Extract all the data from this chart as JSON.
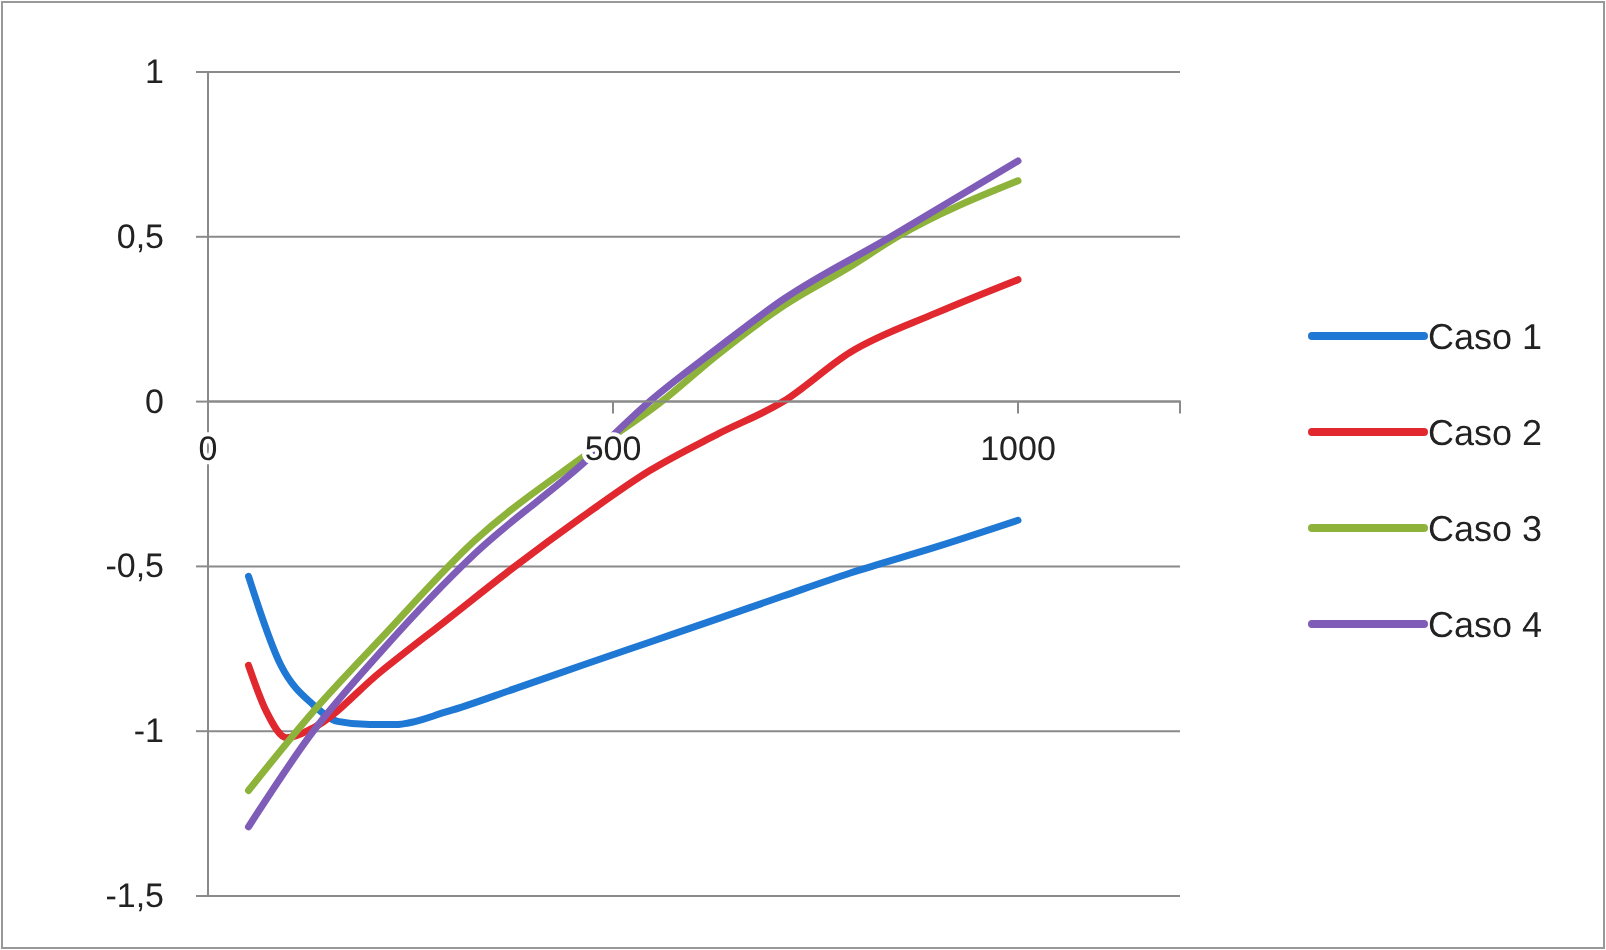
{
  "chart_data": {
    "type": "line",
    "xlim": [
      0,
      1200
    ],
    "xticks": [
      0,
      500,
      1000
    ],
    "ylim": [
      -1.5,
      1
    ],
    "yticks": [
      {
        "value": -1.5,
        "label": "-1,5"
      },
      -1,
      {
        "value": -0.5,
        "label": "-0,5"
      },
      0,
      {
        "value": 0.5,
        "label": "0,5"
      },
      1
    ],
    "grid": "y",
    "legend": "right",
    "marker": "none",
    "line_style": "solid",
    "series": [
      {
        "name": "Caso 1",
        "color": "#1f78d4",
        "x": [
          50,
          90,
          130,
          160,
          200,
          230,
          296,
          380,
          462,
          545,
          628,
          710,
          793,
          900,
          1000
        ],
        "values": [
          -0.53,
          -0.8,
          -0.92,
          -0.97,
          -0.98,
          -0.98,
          -0.94,
          -0.87,
          -0.8,
          -0.73,
          -0.66,
          -0.59,
          -0.52,
          -0.44,
          -0.36
        ]
      },
      {
        "name": "Caso 2",
        "color": "#e0282e",
        "x": [
          50,
          72,
          97,
          130,
          213,
          296,
          379,
          462,
          545,
          628,
          710,
          793,
          900,
          1000
        ],
        "values": [
          -0.8,
          -0.94,
          -1.02,
          -0.99,
          -0.82,
          -0.66,
          -0.5,
          -0.35,
          -0.21,
          -0.1,
          0,
          0.15,
          0.27,
          0.37
        ]
      },
      {
        "name": "Caso 3",
        "color": "#8db33a",
        "x": [
          50,
          130,
          213,
          330,
          462,
          560,
          628,
          710,
          793,
          851,
          1000
        ],
        "values": [
          -1.18,
          -0.94,
          -0.72,
          -0.42,
          -0.17,
          0,
          0.14,
          0.29,
          0.41,
          0.5,
          0.67
        ]
      },
      {
        "name": "Caso 4",
        "color": "#7e5cb8",
        "x": [
          50,
          130,
          213,
          330,
          462,
          545,
          628,
          710,
          843,
          1000
        ],
        "values": [
          -1.29,
          -1.0,
          -0.76,
          -0.46,
          -0.19,
          0,
          0.16,
          0.31,
          0.5,
          0.73
        ]
      }
    ]
  }
}
